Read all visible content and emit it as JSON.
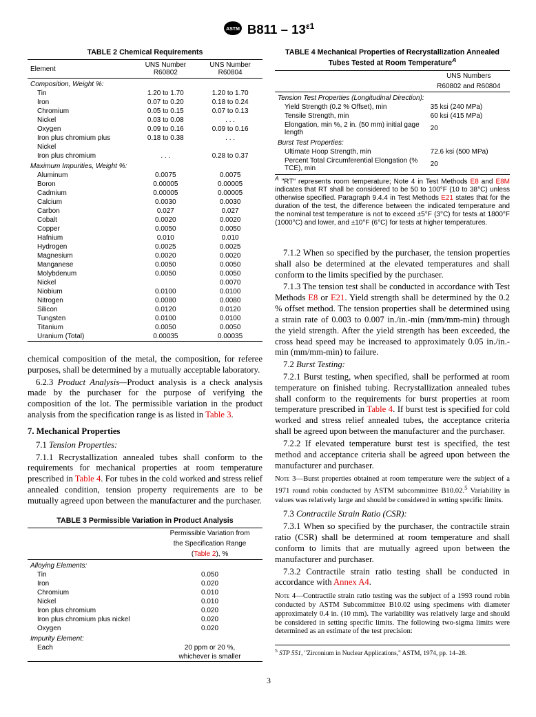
{
  "header": {
    "designation": "B811 – 13",
    "eps": "ε1"
  },
  "table2": {
    "title": "TABLE 2 Chemical Requirements",
    "cols": [
      "Element",
      "UNS Number R60802",
      "UNS Number R60804"
    ],
    "section1": "Composition, Weight %:",
    "comp": [
      [
        "Tin",
        "1.20 to 1.70",
        "1.20 to 1.70"
      ],
      [
        "Iron",
        "0.07 to 0.20",
        "0.18 to 0.24"
      ],
      [
        "Chromium",
        "0.05 to 0.15",
        "0.07 to 0.13"
      ],
      [
        "Nickel",
        "0.03 to 0.08",
        ". . ."
      ],
      [
        "Oxygen",
        "0.09 to 0.16",
        "0.09 to 0.16"
      ],
      [
        "Iron plus chromium plus",
        "0.18 to 0.38",
        ". . ."
      ],
      [
        "Nickel",
        "",
        ""
      ],
      [
        "Iron plus chromium",
        ". . .",
        "0.28 to 0.37"
      ]
    ],
    "section2": "Maximum Impurities, Weight %:",
    "imp": [
      [
        "Aluminum",
        "0.0075",
        "0.0075"
      ],
      [
        "Boron",
        "0.00005",
        "0.00005"
      ],
      [
        "Cadmium",
        "0.00005",
        "0.00005"
      ],
      [
        "Calcium",
        "0.0030",
        "0.0030"
      ],
      [
        "Carbon",
        "0.027",
        "0.027"
      ],
      [
        "Cobalt",
        "0.0020",
        "0.0020"
      ],
      [
        "Copper",
        "0.0050",
        "0.0050"
      ],
      [
        "Hafnium",
        "0.010",
        "0.010"
      ],
      [
        "Hydrogen",
        "0.0025",
        "0.0025"
      ],
      [
        "Magnesium",
        "0.0020",
        "0.0020"
      ],
      [
        "Manganese",
        "0.0050",
        "0.0050"
      ],
      [
        "Molybdenum",
        "0.0050",
        "0.0050"
      ],
      [
        "Nickel",
        "",
        "0.0070"
      ],
      [
        "Niobium",
        "0.0100",
        "0.0100"
      ],
      [
        "Nitrogen",
        "0.0080",
        "0.0080"
      ],
      [
        "Silicon",
        "0.0120",
        "0.0120"
      ],
      [
        "Tungsten",
        "0.0100",
        "0.0100"
      ],
      [
        "Titanium",
        "0.0050",
        "0.0050"
      ],
      [
        "Uranium (Total)",
        "0.00035",
        "0.00035"
      ]
    ]
  },
  "table3": {
    "title": "TABLE 3 Permissible Variation in Product Analysis",
    "col2a": "Permissible Variation from",
    "col2b": "the Specification Range",
    "col2c": "(Table 2), %",
    "section1": "Alloying Elements:",
    "alloy": [
      [
        "Tin",
        "0.050"
      ],
      [
        "Iron",
        "0.020"
      ],
      [
        "Chromium",
        "0.010"
      ],
      [
        "Nickel",
        "0.010"
      ],
      [
        "Iron plus chromium",
        "0.020"
      ],
      [
        "Iron plus chromium plus nickel",
        "0.020"
      ],
      [
        "Oxygen",
        "0.020"
      ]
    ],
    "section2": "Impurity Element:",
    "imp": [
      [
        "Each",
        "20 ppm or 20 %,"
      ],
      [
        "",
        "whichever is smaller"
      ]
    ]
  },
  "table4": {
    "title1": "TABLE 4 Mechanical Properties of Recrystallization Annealed",
    "title2": "Tubes Tested at Room Temperature",
    "col2a": "UNS Numbers",
    "col2b": "R60802 and R60804",
    "section1": "Tension Test Properties (Longitudinal Direction):",
    "tens": [
      [
        "Yield Strength (0.2 % Offset), min",
        "35 ksi (240 MPa)"
      ],
      [
        "Tensile Strength, min",
        "60 ksi (415 MPa)"
      ],
      [
        "Elongation, min %, 2 in. (50 mm) initial gage length",
        "20"
      ]
    ],
    "section2": "Burst Test Properties:",
    "burst": [
      [
        "Ultimate Hoop Strength, min",
        "72.6 ksi (500 MPa)"
      ],
      [
        "Percent Total Circumferential Elongation (% TCE), min",
        "20"
      ]
    ],
    "footA": "A",
    "footnote1": " \"RT\" represents room temperature; Note 4 in Test Methods ",
    "footE8": "E8",
    "footAnd": " and ",
    "footE8M": "E8M",
    "footnote2": " indicates that RT shall be considered to be 50 to 100°F (10 to 38°C) unless otherwise specified. Paragraph 9.4.4 in Test Methods ",
    "footE21": "E21",
    "footnote3": " states that for the duration of the test, the difference between the indicated temperature and the nominal test temperature is not to exceed ±5°F (3°C) for tests at 1800°F (1000°C) and lower, and ±10°F (6°C) for tests at higher temperatures."
  },
  "body": {
    "p1": "chemical composition of the metal, the composition, for referee purposes, shall be determined by a mutually acceptable laboratory.",
    "p2a": "6.2.3 ",
    "p2b": "Product Analysis—",
    "p2c": "Product analysis is a check analysis made by the purchaser for the purpose of verifying the composition of the lot. The permissible variation in the product analysis from the specification range is as listed in ",
    "p2ref": "Table 3",
    "p2d": ".",
    "h7": "7. Mechanical Properties",
    "h71": "7.1 ",
    "h71i": "Tension Properties:",
    "p711a": "7.1.1 Recrystallization annealed tubes shall conform to the requirements for mechanical properties at room temperature prescribed in ",
    "p711ref": "Table 4",
    "p711b": ". For tubes in the cold worked and stress relief annealed condition, tension property requirements are to be mutually agreed upon between the manufacturer and the purchaser.",
    "p712": "7.1.2 When so specified by the purchaser, the tension properties shall also be determined at the elevated temperatures and shall conform to the limits specified by the purchaser.",
    "p713a": "7.1.3 The tension test shall be conducted in accordance with Test Methods ",
    "p713r1": "E8",
    "p713b": " or ",
    "p713r2": "E21",
    "p713c": ". Yield strength shall be determined by the 0.2 % offset method. The tension properties shall be determined using a strain rate of 0.003 to 0.007 in./in.-min (mm/mm-min) through the yield strength. After the yield strength has been exceeded, the cross head speed may be increased to approximately 0.05 in./in.-min (mm/mm-min) to failure.",
    "h72": "7.2 ",
    "h72i": "Burst Testing:",
    "p721a": "7.2.1 Burst testing, when specified, shall be performed at room temperature on finished tubing. Recrystallization annealed tubes shall conform to the requirements for burst properties at room temperature prescribed in ",
    "p721ref": "Table 4",
    "p721b": ". If burst test is specified for cold worked and stress relief annealed tubes, the acceptance criteria shall be agreed upon between the manufacturer and the purchaser.",
    "p722": "7.2.2 If elevated temperature burst test is specified, the test method and acceptance criteria shall be agreed upon between the manufacturer and purchaser.",
    "note3label": "Note 3—",
    "note3a": "Burst properties obtained at room temperature were the subject of a 1971 round robin conducted by ASTM subcommittee B10.02.",
    "note3sup": "5",
    "note3b": " Variability in values was relatively large and should be considered in setting specific limits.",
    "h73": "7.3 ",
    "h73i": "Contractile Strain Ratio (CSR):",
    "p731": "7.3.1 When so specified by the purchaser, the contractile strain ratio (CSR) shall be determined at room temperature and shall conform to limits that are mutually agreed upon between the manufacturer and purchaser.",
    "p732a": "7.3.2 Contractile strain ratio testing shall be conducted in accordance with ",
    "p732ref": "Annex A4",
    "p732b": ".",
    "note4label": "Note 4—",
    "note4": "Contractile strain ratio testing was the subject of a 1993 round robin conducted by ASTM Subcommittee B10.02 using specimens with diameter approximately 0.4 in. (10 mm). The variability was relatively large and should be considered in setting specific limits. The following two-sigma limits were determined as an estimate of the test precision:",
    "footref5sup": "5",
    "footref5": " STP 551",
    "footref5b": ", \"Zirconium in Nuclear Applications,\" ASTM, 1974, pp. 14–28."
  },
  "pagenum": "3"
}
